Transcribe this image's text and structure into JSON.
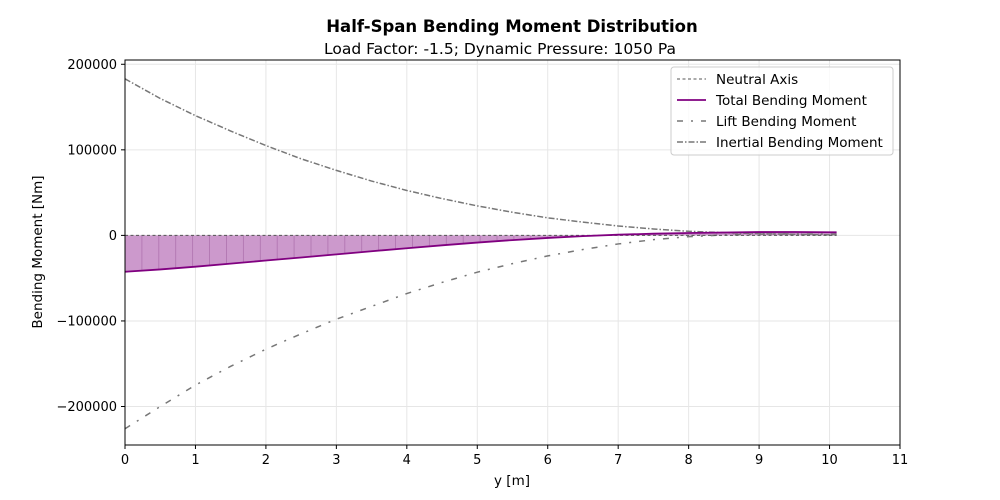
{
  "chart_data": {
    "type": "line",
    "title": "Half-Span Bending Moment Distribution",
    "subtitle": "Load Factor: -1.5; Dynamic Pressure: 1050 Pa",
    "xlabel": "y [m]",
    "ylabel": "Bending Moment [Nm]",
    "xlim": [
      0,
      11
    ],
    "ylim": [
      -245000,
      205000
    ],
    "xticks": [
      0,
      1,
      2,
      3,
      4,
      5,
      6,
      7,
      8,
      9,
      10,
      11
    ],
    "yticks": [
      -200000,
      -100000,
      0,
      100000,
      200000
    ],
    "ytick_labels": [
      "−200000",
      "−100000",
      "0",
      "100000",
      "200000"
    ],
    "grid": true,
    "legend_position": "top-right",
    "fill": {
      "series": "Total Bending Moment",
      "between": "Neutral Axis",
      "color": "#cc99cc"
    },
    "series": [
      {
        "name": "Neutral Axis",
        "style": "dashed",
        "color": "#555555",
        "x": [
          0,
          10.1
        ],
        "y": [
          0,
          0
        ]
      },
      {
        "name": "Total Bending Moment",
        "style": "solid",
        "color": "#800080",
        "x": [
          0,
          0.5,
          1,
          1.5,
          2,
          2.5,
          3,
          3.5,
          4,
          4.5,
          5,
          5.5,
          6,
          6.5,
          7,
          7.5,
          8,
          8.5,
          9,
          9.5,
          10,
          10.1
        ],
        "y": [
          -42500,
          -39800,
          -36600,
          -33000,
          -29400,
          -25800,
          -22200,
          -18500,
          -15000,
          -11600,
          -8400,
          -5500,
          -3000,
          -900,
          800,
          2000,
          2800,
          3400,
          3900,
          4000,
          3700,
          3600
        ]
      },
      {
        "name": "Lift Bending Moment",
        "style": "dashdot-sparse",
        "color": "#777777",
        "x": [
          0,
          0.5,
          1,
          1.5,
          2,
          2.5,
          3,
          3.5,
          4,
          4.5,
          5,
          5.5,
          6,
          6.5,
          7,
          7.5,
          8,
          8.5,
          9,
          9.5,
          10,
          10.1
        ],
        "y": [
          -226000,
          -200000,
          -175000,
          -153000,
          -133000,
          -115000,
          -98000,
          -83000,
          -68000,
          -55000,
          -43000,
          -33000,
          -24000,
          -16500,
          -10000,
          -5000,
          -1500,
          500,
          1500,
          1800,
          1500,
          1500
        ]
      },
      {
        "name": "Inertial Bending Moment",
        "style": "dashdot",
        "color": "#777777",
        "x": [
          0,
          0.5,
          1,
          1.5,
          2,
          2.5,
          3,
          3.5,
          4,
          4.5,
          5,
          5.5,
          6,
          6.5,
          7,
          7.5,
          8,
          8.5,
          9,
          9.5,
          10,
          10.1
        ],
        "y": [
          183000,
          160000,
          140000,
          122000,
          105000,
          89500,
          76000,
          63500,
          52500,
          43000,
          34500,
          27000,
          20500,
          15500,
          11000,
          7500,
          4800,
          3200,
          2000,
          1200,
          600,
          500
        ]
      }
    ]
  }
}
